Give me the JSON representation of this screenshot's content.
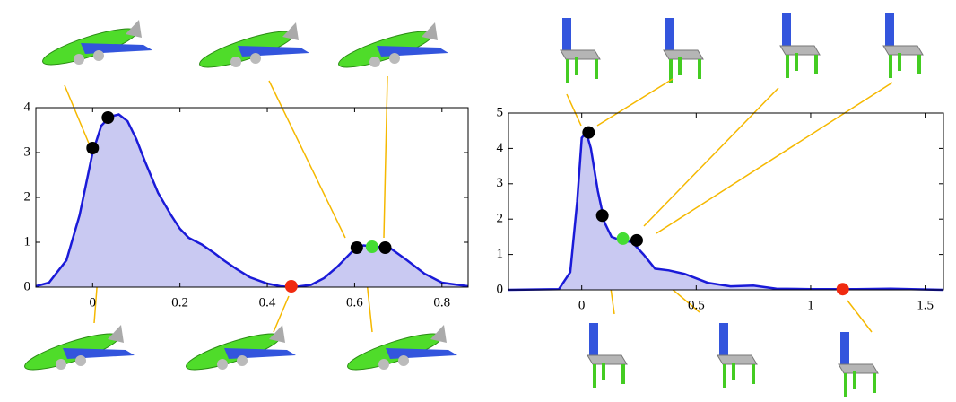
{
  "chart_data": [
    {
      "type": "area",
      "color": "#1a1ad8",
      "fill": "#c9c9f2",
      "xlim": [
        -0.13,
        0.86
      ],
      "ylim": [
        0,
        4
      ],
      "xticks": [
        0,
        0.2,
        0.4,
        0.6,
        0.8
      ],
      "yticks": [
        0,
        1,
        2,
        3,
        4
      ],
      "x": [
        -0.13,
        -0.1,
        -0.06,
        -0.03,
        0,
        0.02,
        0.04,
        0.06,
        0.08,
        0.1,
        0.12,
        0.15,
        0.18,
        0.2,
        0.22,
        0.25,
        0.28,
        0.3,
        0.33,
        0.36,
        0.4,
        0.43,
        0.46,
        0.5,
        0.53,
        0.56,
        0.6,
        0.62,
        0.65,
        0.68,
        0.72,
        0.76,
        0.8,
        0.86
      ],
      "values": [
        0.02,
        0.1,
        0.6,
        1.6,
        3.0,
        3.6,
        3.8,
        3.85,
        3.7,
        3.3,
        2.8,
        2.1,
        1.6,
        1.3,
        1.1,
        0.95,
        0.75,
        0.6,
        0.4,
        0.22,
        0.08,
        0.02,
        0.0,
        0.05,
        0.2,
        0.45,
        0.85,
        0.93,
        0.9,
        0.88,
        0.6,
        0.3,
        0.1,
        0.02
      ],
      "markers": [
        {
          "x": 0.0,
          "y": 3.1,
          "color": "#000000"
        },
        {
          "x": 0.035,
          "y": 3.78,
          "color": "#000000"
        },
        {
          "x": 0.455,
          "y": 0.02,
          "color": "#f02a10"
        },
        {
          "x": 0.605,
          "y": 0.88,
          "color": "#000000"
        },
        {
          "x": 0.64,
          "y": 0.9,
          "color": "#44dd33"
        },
        {
          "x": 0.67,
          "y": 0.88,
          "color": "#000000"
        }
      ]
    },
    {
      "type": "area",
      "color": "#1a1ad8",
      "fill": "#c9c9f2",
      "xlim": [
        -0.32,
        1.58
      ],
      "ylim": [
        0,
        5
      ],
      "xticks": [
        0,
        0.5,
        1,
        1.5
      ],
      "yticks": [
        0,
        1,
        2,
        3,
        4,
        5
      ],
      "x": [
        -0.32,
        -0.1,
        -0.05,
        -0.02,
        0,
        0.02,
        0.04,
        0.07,
        0.1,
        0.13,
        0.17,
        0.22,
        0.27,
        0.32,
        0.38,
        0.45,
        0.55,
        0.65,
        0.75,
        0.85,
        1.0,
        1.2,
        1.35,
        1.58
      ],
      "values": [
        0,
        0.02,
        0.5,
        2.5,
        4.3,
        4.45,
        4.0,
        2.8,
        1.9,
        1.5,
        1.4,
        1.35,
        1.0,
        0.6,
        0.55,
        0.45,
        0.2,
        0.1,
        0.12,
        0.03,
        0.02,
        0.02,
        0.03,
        0
      ],
      "markers": [
        {
          "x": 0.03,
          "y": 4.45,
          "color": "#000000"
        },
        {
          "x": 0.09,
          "y": 2.1,
          "color": "#000000"
        },
        {
          "x": 0.18,
          "y": 1.45,
          "color": "#44dd33"
        },
        {
          "x": 0.24,
          "y": 1.4,
          "color": "#000000"
        },
        {
          "x": 1.14,
          "y": 0.02,
          "color": "#f02a10"
        }
      ]
    }
  ]
}
